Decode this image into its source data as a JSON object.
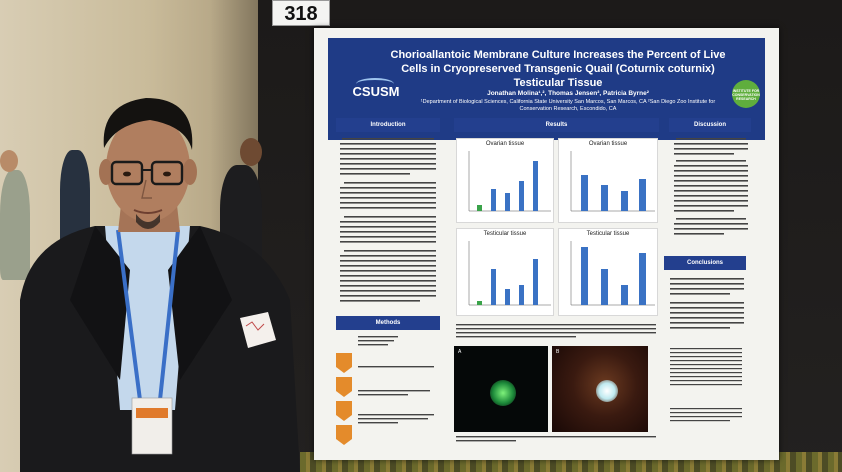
{
  "scene": {
    "board_number": "318",
    "colors": {
      "poster_header": "#1f3b86",
      "section_header": "#233f8e",
      "chart_bar": "#3a72c4",
      "method_arrow": "#e48b2b"
    }
  },
  "poster": {
    "title": "Chorioallantoic Membrane Culture Increases the Percent of Live Cells in Cryopreserved Transgenic Quail (Coturnix coturnix) Testicular Tissue",
    "authors": "Jonathan Molina¹,², Thomas Jensen², Patricia Byrne²",
    "affiliations": "¹Department of Biological Sciences, California State University San Marcos, San Marcos, CA ²San Diego Zoo Institute for Conservation Research, Escondido, CA",
    "logo_left": "CSUSM",
    "logo_right": "INSTITUTE FOR CONSERVATION RESEARCH",
    "sections": {
      "introduction": "Introduction",
      "results": "Results",
      "discussion": "Discussion",
      "methods": "Methods",
      "conclusions": "Conclusions"
    },
    "chart_titles": {
      "ovarian_1": "Ovarian tissue",
      "ovarian_2": "Ovarian tissue",
      "testicular_1": "Testicular tissue",
      "testicular_2": "Testicular tissue"
    },
    "figure_panels": {
      "a": "A",
      "b": "B"
    }
  }
}
